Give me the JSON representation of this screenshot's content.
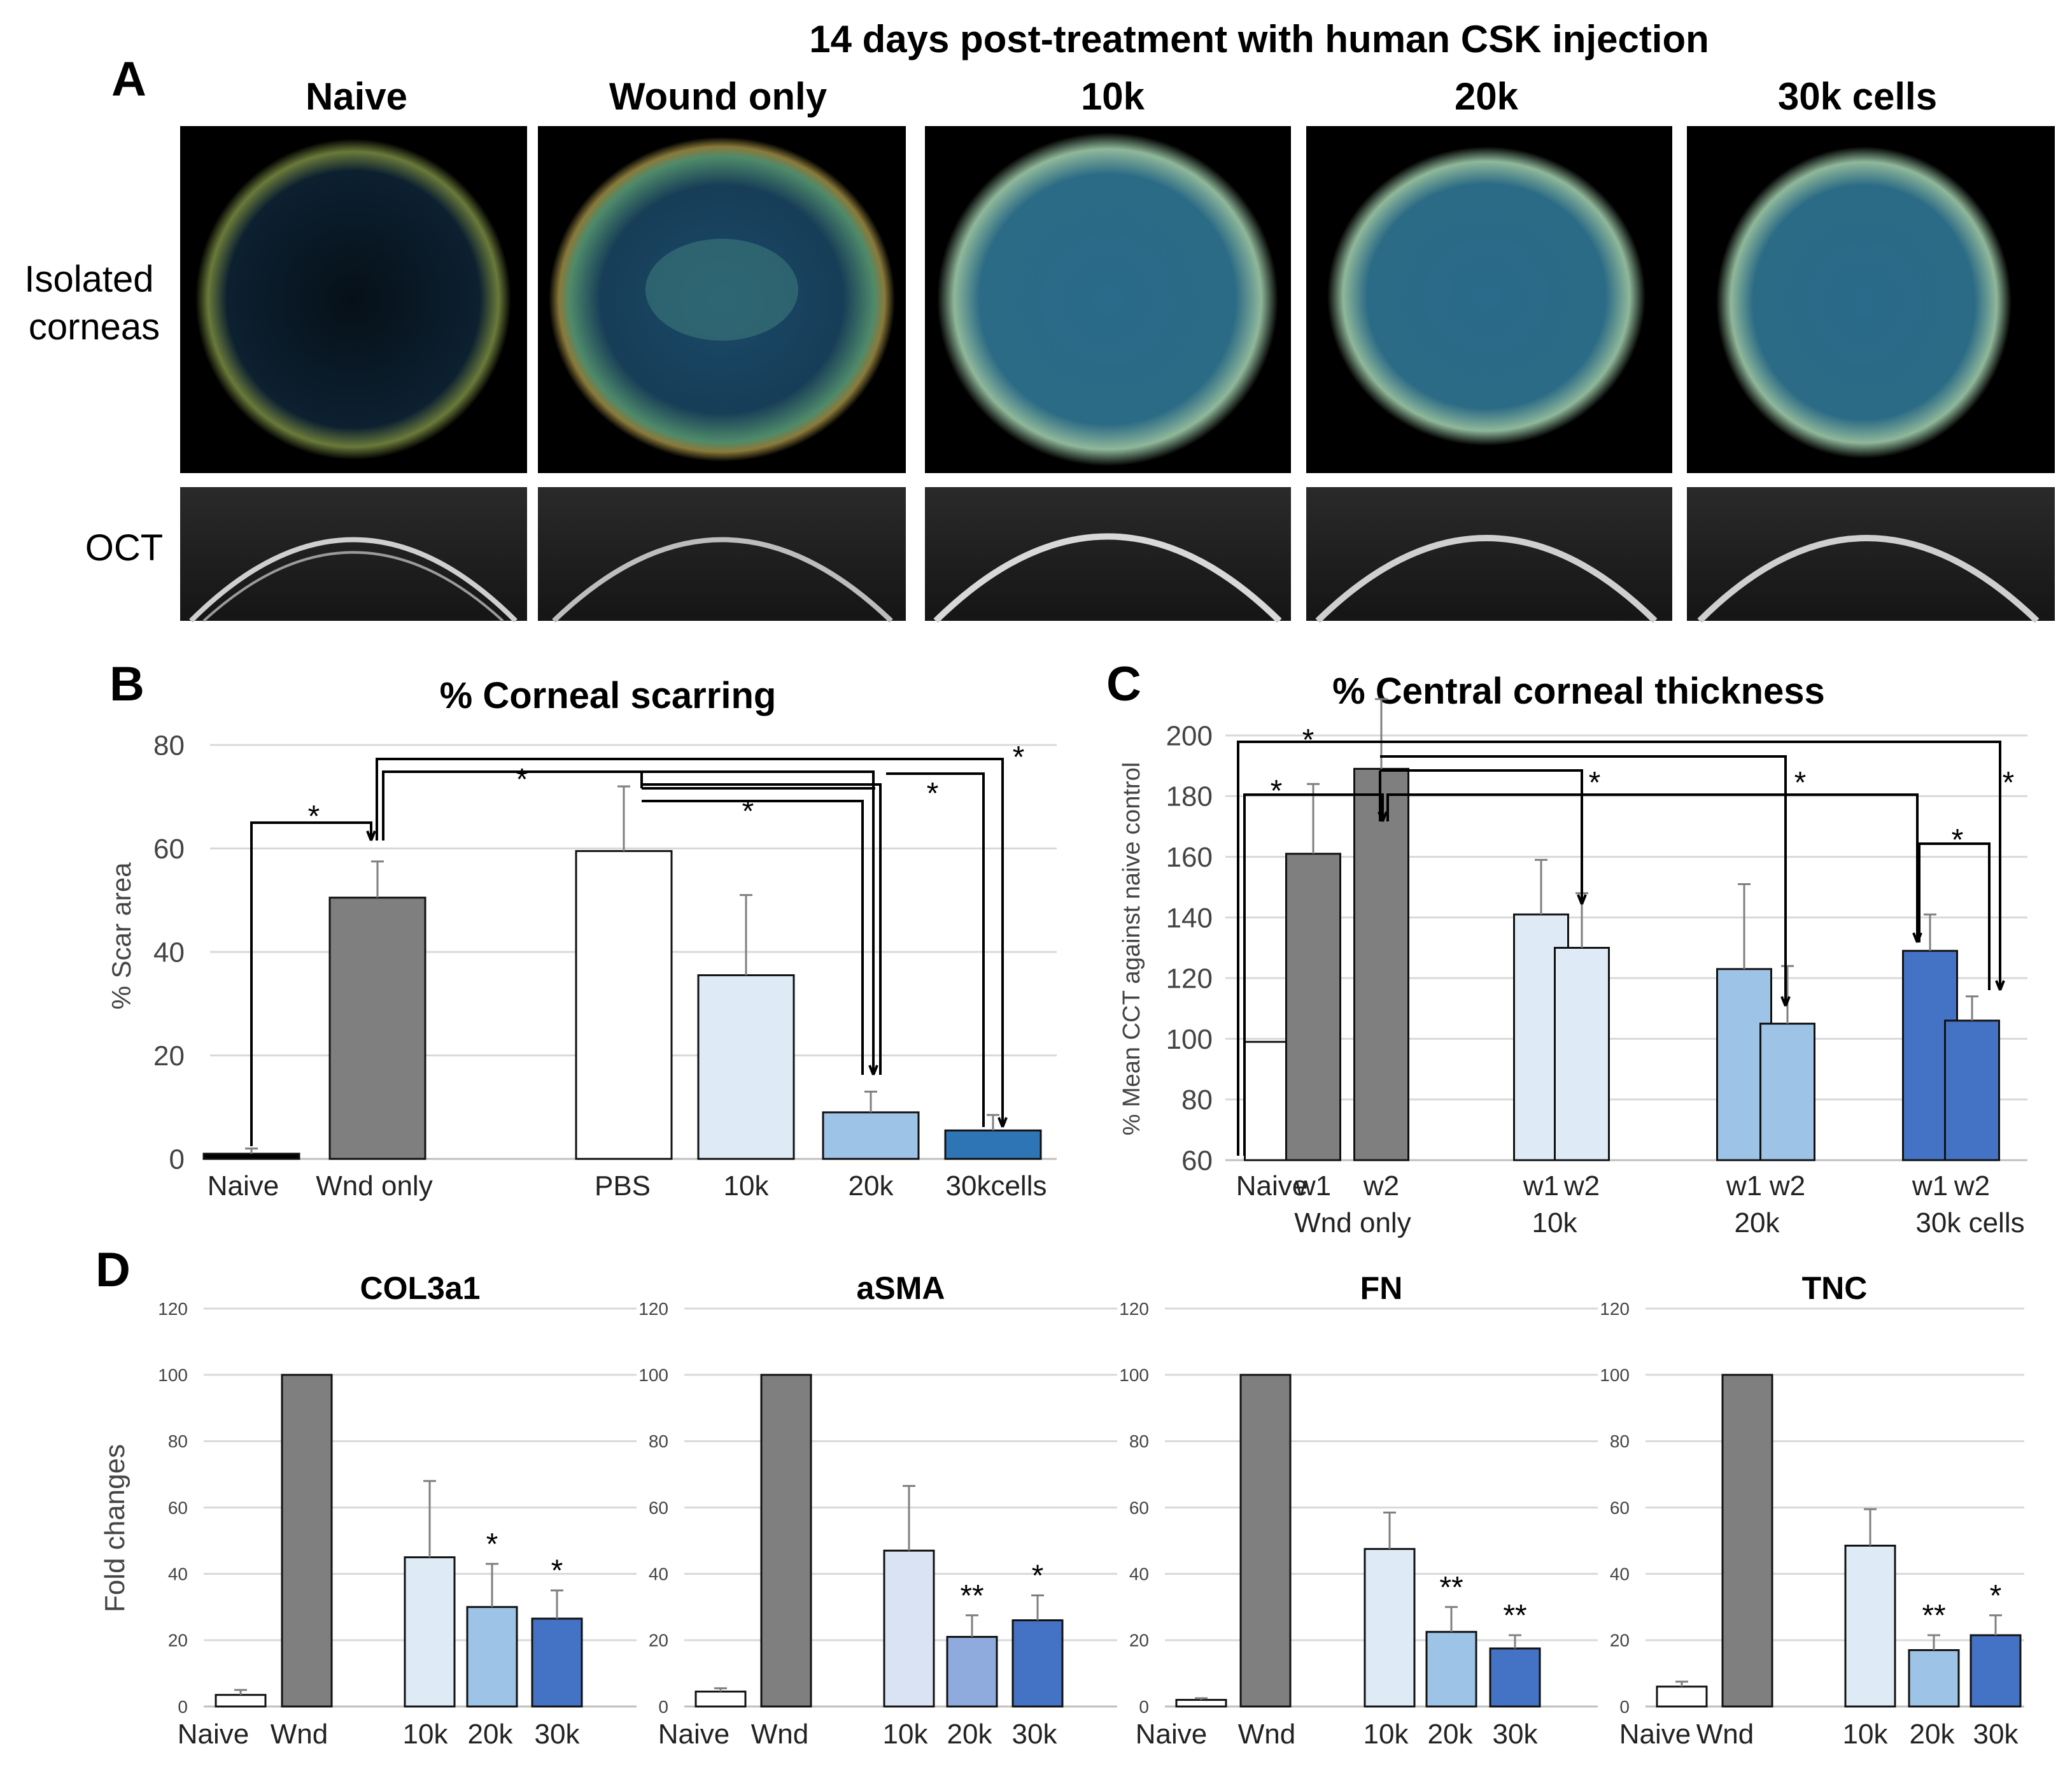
{
  "panel_a": {
    "letter": "A",
    "header": "14 days post-treatment with human CSK injection",
    "columns": [
      "Naive",
      "Wound only",
      "10k",
      "20k",
      "30k cells"
    ],
    "row_labels": [
      "Isolated\ncorneas",
      "OCT"
    ]
  },
  "chart_data": [
    {
      "id": "B",
      "letter": "B",
      "type": "bar",
      "title": "% Corneal scarring",
      "ylabel": "% Scar area",
      "xlabel": "",
      "ylim": [
        0,
        80
      ],
      "yticks": [
        0,
        20,
        40,
        60,
        80
      ],
      "categories": [
        "Naive",
        "Wnd only",
        "PBS",
        "10k",
        "20k",
        "30kcells"
      ],
      "values": [
        1,
        50.5,
        59.5,
        35.5,
        9,
        5.5
      ],
      "errors": [
        1,
        7,
        12.5,
        15.5,
        4,
        3
      ],
      "colors": [
        "#000000",
        "#7f7f7f",
        "#ffffff",
        "#deebf7",
        "#9dc3e6",
        "#2e75b6"
      ],
      "grid": true,
      "significance": [
        "*",
        "*",
        "*",
        "*",
        "*"
      ]
    },
    {
      "id": "C",
      "letter": "C",
      "type": "bar",
      "title": "% Central corneal thickness",
      "ylabel": "% Mean CCT against naive control",
      "xlabel": "",
      "ylim": [
        60,
        200
      ],
      "yticks": [
        60,
        80,
        100,
        120,
        140,
        160,
        180,
        200
      ],
      "categories": [
        "Naive",
        "w1",
        "w2",
        "w1",
        "w2",
        "w1",
        "w2",
        "w1",
        "w2"
      ],
      "groups": [
        "Wnd only",
        "10k",
        "20k",
        "30k cells"
      ],
      "values": [
        99,
        161,
        189,
        141,
        130,
        123,
        105,
        129,
        106
      ],
      "errors": [
        0,
        23,
        23,
        18,
        18,
        28,
        19,
        12,
        8
      ],
      "colors": [
        "#ffffff",
        "#7f7f7f",
        "#7f7f7f",
        "#deebf7",
        "#deebf7",
        "#9dc3e6",
        "#9dc3e6",
        "#4472c4",
        "#4472c4"
      ],
      "grid": true,
      "significance": [
        "*",
        "*",
        "*",
        "*",
        "*",
        "*"
      ]
    },
    {
      "id": "D1",
      "letter": "D",
      "type": "bar",
      "title": "COL3a1",
      "ylabel": "Fold changes",
      "ylim": [
        0,
        120
      ],
      "yticks": [
        0,
        20,
        40,
        60,
        80,
        100,
        120
      ],
      "categories": [
        "Naive",
        "Wnd",
        "10k",
        "20k",
        "30k"
      ],
      "values": [
        3.5,
        100,
        45,
        30,
        26.5
      ],
      "errors": [
        1.5,
        0,
        23,
        13,
        8.5
      ],
      "stars": [
        "",
        "",
        "",
        "*",
        "*"
      ],
      "colors": [
        "#ffffff",
        "#7f7f7f",
        "#deebf7",
        "#9dc3e6",
        "#4472c4"
      ],
      "grid": true
    },
    {
      "id": "D2",
      "type": "bar",
      "title": "aSMA",
      "ylim": [
        0,
        120
      ],
      "yticks": [
        0,
        20,
        40,
        60,
        80,
        100,
        120
      ],
      "categories": [
        "Naive",
        "Wnd",
        "10k",
        "20k",
        "30k"
      ],
      "values": [
        4.5,
        100,
        47,
        21,
        26
      ],
      "errors": [
        1,
        0,
        19.5,
        6.5,
        7.5
      ],
      "stars": [
        "",
        "",
        "",
        "**",
        "*"
      ],
      "colors": [
        "#ffffff",
        "#7f7f7f",
        "#dae3f3",
        "#8faadc",
        "#4472c4"
      ],
      "grid": true
    },
    {
      "id": "D3",
      "type": "bar",
      "title": "FN",
      "ylim": [
        0,
        120
      ],
      "yticks": [
        0,
        20,
        40,
        60,
        80,
        100,
        120
      ],
      "categories": [
        "Naive",
        "Wnd",
        "10k",
        "20k",
        "30k"
      ],
      "values": [
        2,
        100,
        47.5,
        22.5,
        17.5
      ],
      "errors": [
        0.5,
        0,
        11,
        7.5,
        4
      ],
      "stars": [
        "",
        "",
        "",
        "**",
        "**"
      ],
      "colors": [
        "#ffffff",
        "#7f7f7f",
        "#deebf7",
        "#9dc3e6",
        "#4472c4"
      ],
      "grid": true
    },
    {
      "id": "D4",
      "type": "bar",
      "title": "TNC",
      "ylim": [
        0,
        120
      ],
      "yticks": [
        0,
        20,
        40,
        60,
        80,
        100,
        120
      ],
      "categories": [
        "Naive",
        "Wnd",
        "10k",
        "20k",
        "30k"
      ],
      "values": [
        6,
        100,
        48.5,
        17,
        21.5
      ],
      "errors": [
        1.5,
        0,
        11,
        4.5,
        6
      ],
      "stars": [
        "",
        "",
        "",
        "**",
        "*"
      ],
      "colors": [
        "#ffffff",
        "#7f7f7f",
        "#deebf7",
        "#9dc3e6",
        "#4472c4"
      ],
      "grid": true
    }
  ]
}
